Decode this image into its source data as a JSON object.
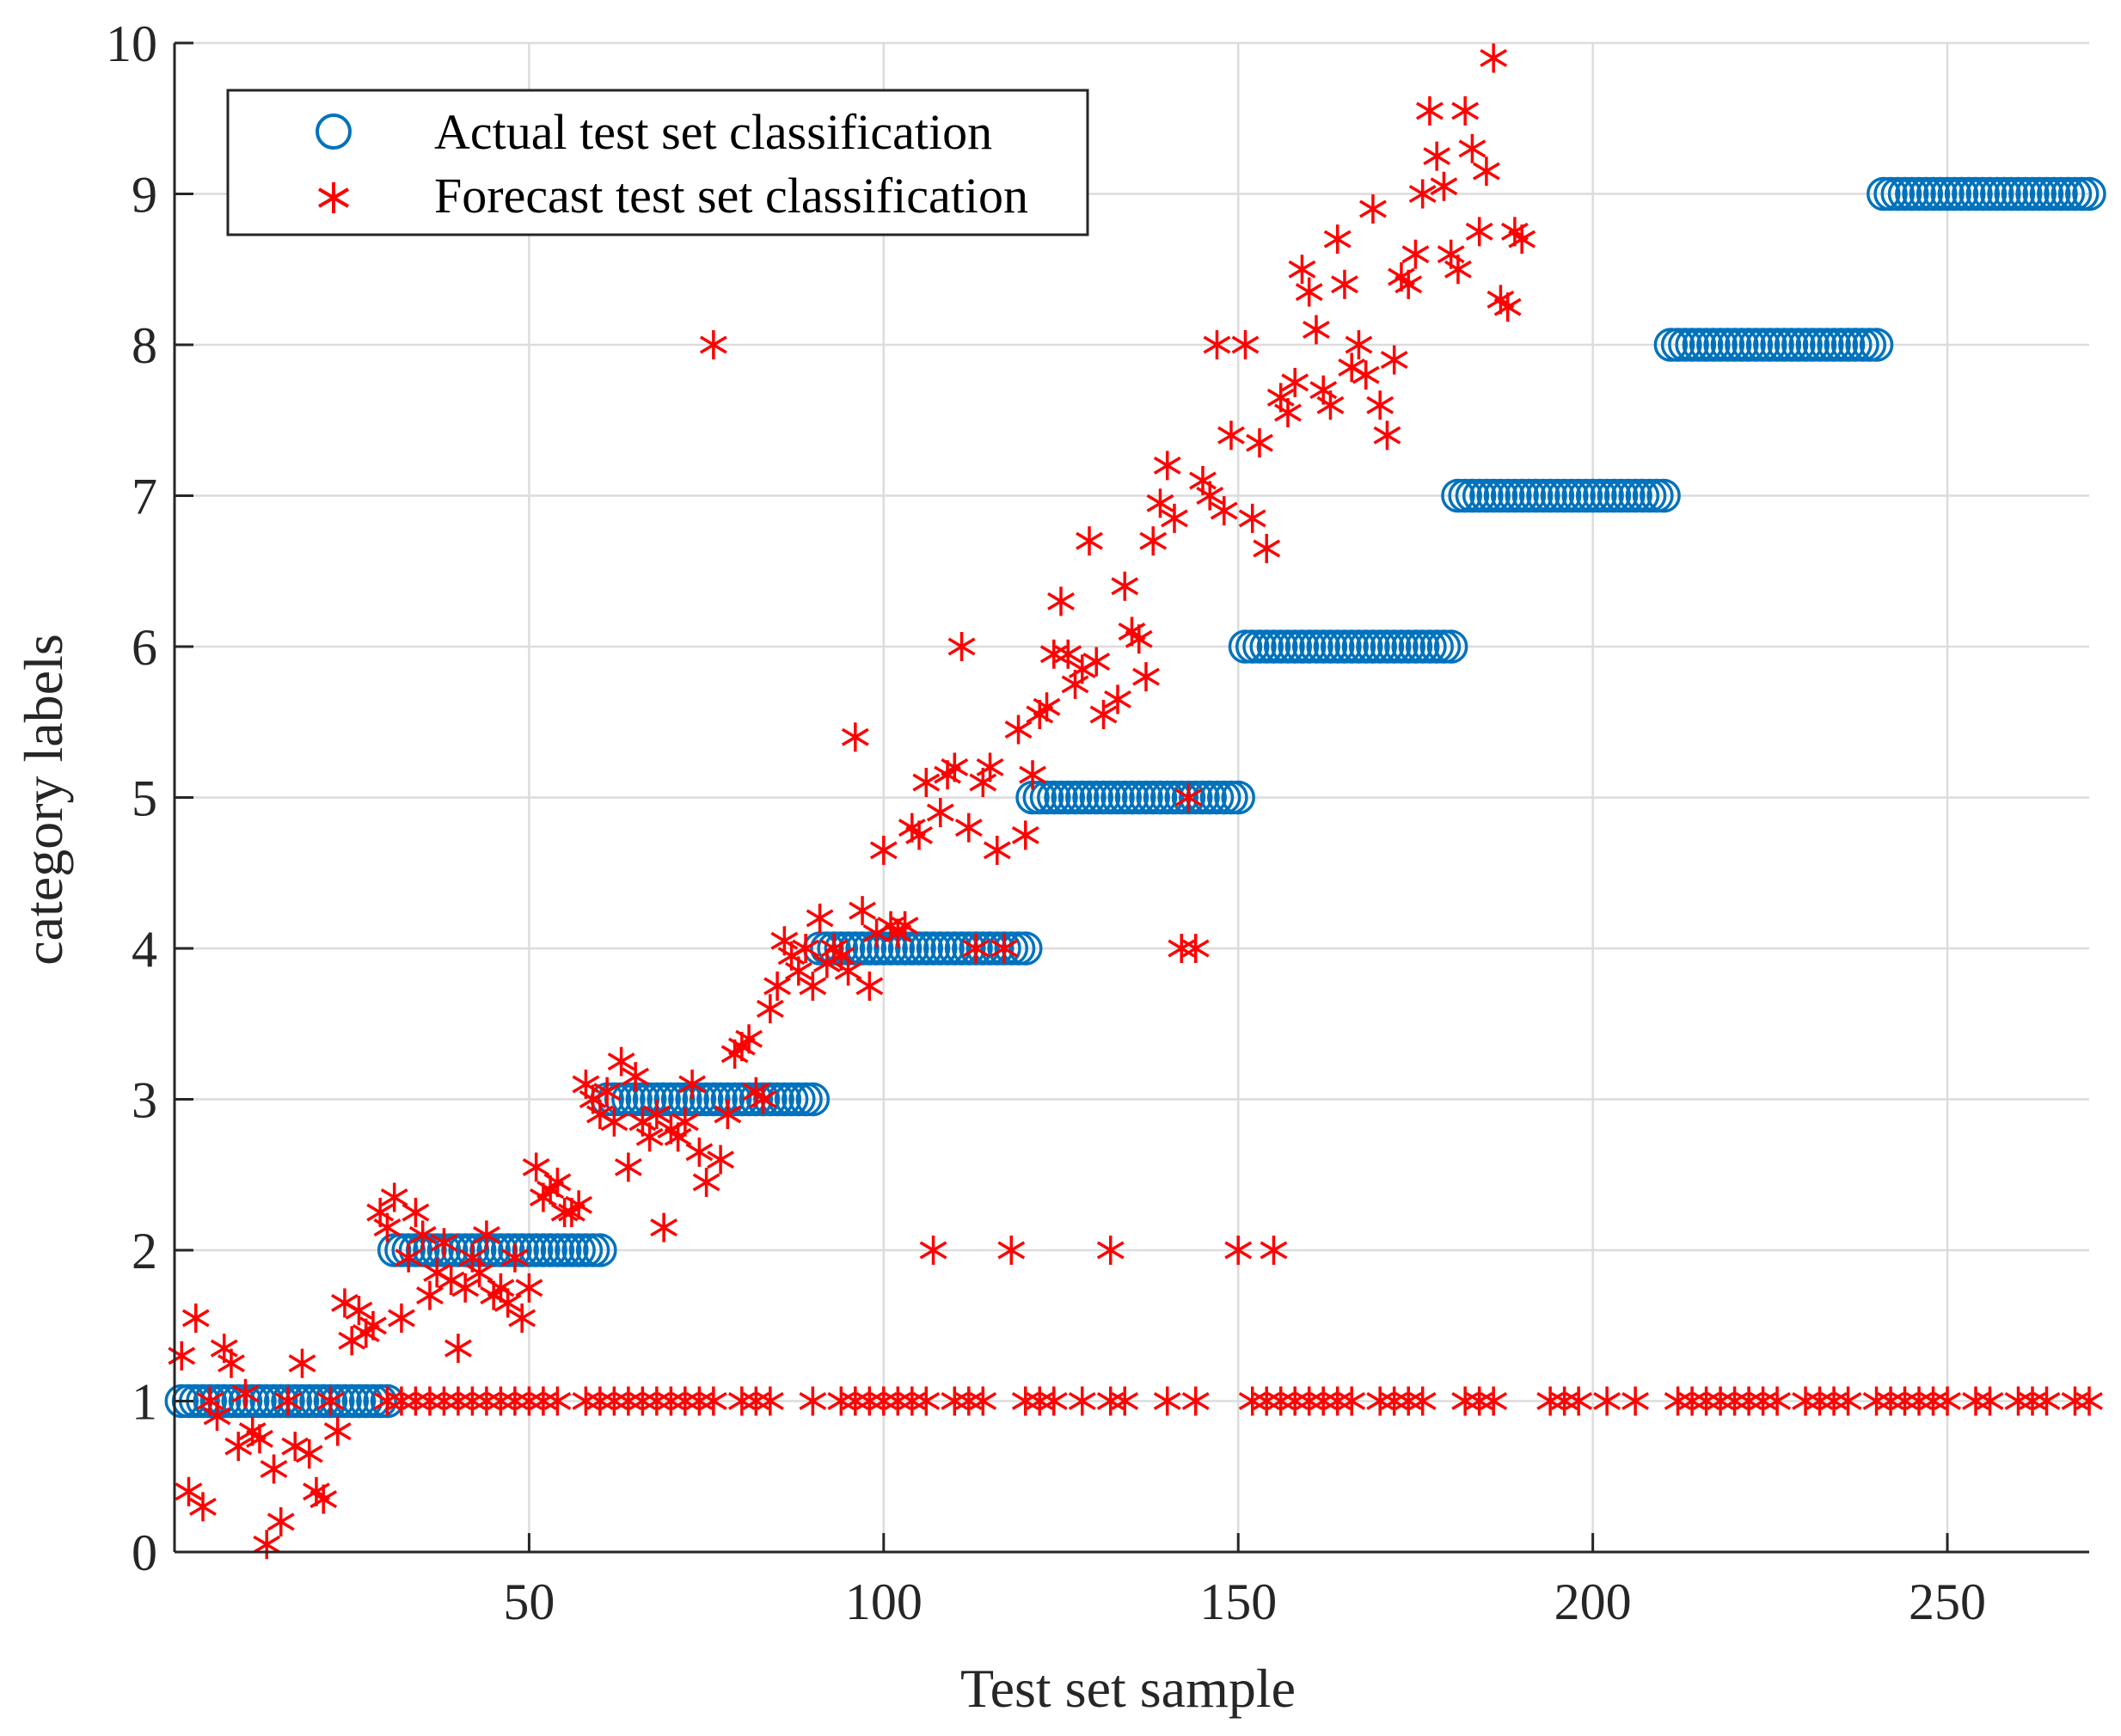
{
  "chart_data": {
    "type": "scatter",
    "title": "",
    "xlabel": "Test set sample",
    "ylabel": "category labels",
    "xlim": [
      0,
      270
    ],
    "ylim": [
      0,
      10
    ],
    "xticks": [
      50,
      100,
      150,
      200,
      250
    ],
    "yticks": [
      0,
      1,
      2,
      3,
      4,
      5,
      6,
      7,
      8,
      9,
      10
    ],
    "grid": true,
    "legend_position": "top-left",
    "colors": {
      "actual": "#0072BD",
      "forecast": "#FF0000",
      "grid": "#DCDCDC",
      "axis": "#262626"
    },
    "series": [
      {
        "name": "Actual test set classification",
        "marker": "circle",
        "segments": [
          {
            "label": 1,
            "from": 1,
            "to": 30
          },
          {
            "label": 2,
            "from": 31,
            "to": 60
          },
          {
            "label": 3,
            "from": 61,
            "to": 90
          },
          {
            "label": 4,
            "from": 91,
            "to": 120
          },
          {
            "label": 5,
            "from": 121,
            "to": 150
          },
          {
            "label": 6,
            "from": 151,
            "to": 180
          },
          {
            "label": 7,
            "from": 181,
            "to": 210
          },
          {
            "label": 8,
            "from": 211,
            "to": 240
          },
          {
            "label": 9,
            "from": 241,
            "to": 270
          }
        ]
      },
      {
        "name": "Forecast test set classification",
        "marker": "asterisk",
        "baseline_value": 1,
        "baseline_x": [
          30,
          32,
          34,
          36,
          38,
          40,
          42,
          44,
          46,
          48,
          50,
          52,
          54,
          58,
          60,
          62,
          64,
          66,
          68,
          70,
          72,
          74,
          76,
          80,
          82,
          84,
          90,
          94,
          96,
          98,
          100,
          102,
          104,
          106,
          110,
          112,
          114,
          120,
          122,
          124,
          128,
          132,
          134,
          140,
          144,
          152,
          154,
          156,
          158,
          160,
          162,
          164,
          166,
          170,
          172,
          174,
          176,
          182,
          184,
          186,
          194,
          196,
          198,
          202,
          206,
          212,
          214,
          216,
          218,
          220,
          222,
          224,
          226,
          230,
          232,
          234,
          236,
          240,
          242,
          244,
          246,
          248,
          250,
          254,
          256,
          260,
          262,
          264,
          268,
          270
        ],
        "points": [
          [
            1,
            1.3
          ],
          [
            2,
            0.4
          ],
          [
            3,
            1.55
          ],
          [
            4,
            0.3
          ],
          [
            5,
            1.0
          ],
          [
            6,
            0.9
          ],
          [
            7,
            1.35
          ],
          [
            8,
            1.25
          ],
          [
            9,
            0.7
          ],
          [
            10,
            1.05
          ],
          [
            11,
            0.8
          ],
          [
            12,
            0.75
          ],
          [
            13,
            0.05
          ],
          [
            14,
            0.55
          ],
          [
            15,
            0.2
          ],
          [
            16,
            1.0
          ],
          [
            17,
            0.7
          ],
          [
            18,
            1.25
          ],
          [
            19,
            0.65
          ],
          [
            20,
            0.4
          ],
          [
            21,
            0.35
          ],
          [
            22,
            1.0
          ],
          [
            23,
            0.8
          ],
          [
            24,
            1.65
          ],
          [
            25,
            1.4
          ],
          [
            26,
            1.6
          ],
          [
            27,
            1.45
          ],
          [
            28,
            1.5
          ],
          [
            29,
            2.25
          ],
          [
            30,
            2.15
          ],
          [
            31,
            2.35
          ],
          [
            32,
            1.55
          ],
          [
            33,
            1.95
          ],
          [
            34,
            2.25
          ],
          [
            35,
            2.1
          ],
          [
            36,
            1.7
          ],
          [
            37,
            1.85
          ],
          [
            38,
            2.05
          ],
          [
            39,
            1.8
          ],
          [
            40,
            1.35
          ],
          [
            41,
            1.75
          ],
          [
            42,
            1.95
          ],
          [
            43,
            1.85
          ],
          [
            44,
            2.1
          ],
          [
            45,
            1.7
          ],
          [
            46,
            1.75
          ],
          [
            47,
            1.65
          ],
          [
            48,
            1.95
          ],
          [
            49,
            1.55
          ],
          [
            50,
            1.75
          ],
          [
            51,
            2.55
          ],
          [
            52,
            2.35
          ],
          [
            53,
            2.4
          ],
          [
            54,
            2.45
          ],
          [
            55,
            2.25
          ],
          [
            56,
            2.25
          ],
          [
            57,
            2.3
          ],
          [
            58,
            3.1
          ],
          [
            59,
            3.0
          ],
          [
            60,
            2.9
          ],
          [
            61,
            3.05
          ],
          [
            62,
            2.85
          ],
          [
            63,
            3.25
          ],
          [
            64,
            2.55
          ],
          [
            65,
            3.15
          ],
          [
            66,
            2.85
          ],
          [
            67,
            2.75
          ],
          [
            68,
            2.9
          ],
          [
            69,
            2.15
          ],
          [
            70,
            2.8
          ],
          [
            71,
            2.75
          ],
          [
            72,
            2.85
          ],
          [
            73,
            3.1
          ],
          [
            74,
            2.65
          ],
          [
            75,
            2.45
          ],
          [
            76,
            8.0
          ],
          [
            77,
            2.6
          ],
          [
            78,
            2.9
          ],
          [
            79,
            3.3
          ],
          [
            80,
            3.35
          ],
          [
            81,
            3.4
          ],
          [
            82,
            3.05
          ],
          [
            83,
            3.0
          ],
          [
            84,
            3.6
          ],
          [
            85,
            3.75
          ],
          [
            86,
            4.05
          ],
          [
            87,
            3.95
          ],
          [
            88,
            3.85
          ],
          [
            89,
            4.0
          ],
          [
            90,
            3.75
          ],
          [
            91,
            4.2
          ],
          [
            92,
            3.9
          ],
          [
            93,
            4.0
          ],
          [
            94,
            3.95
          ],
          [
            95,
            3.85
          ],
          [
            96,
            5.4
          ],
          [
            97,
            4.25
          ],
          [
            98,
            3.75
          ],
          [
            99,
            4.1
          ],
          [
            100,
            4.65
          ],
          [
            101,
            4.15
          ],
          [
            102,
            4.1
          ],
          [
            103,
            4.15
          ],
          [
            104,
            4.8
          ],
          [
            105,
            4.75
          ],
          [
            106,
            5.1
          ],
          [
            107,
            2.0
          ],
          [
            108,
            4.9
          ],
          [
            109,
            5.15
          ],
          [
            110,
            5.2
          ],
          [
            111,
            6.0
          ],
          [
            112,
            4.8
          ],
          [
            113,
            4.0
          ],
          [
            114,
            5.1
          ],
          [
            115,
            5.2
          ],
          [
            116,
            4.65
          ],
          [
            117,
            4.0
          ],
          [
            118,
            2.0
          ],
          [
            119,
            5.45
          ],
          [
            120,
            4.75
          ],
          [
            121,
            5.15
          ],
          [
            122,
            5.55
          ],
          [
            123,
            5.6
          ],
          [
            124,
            5.95
          ],
          [
            125,
            6.3
          ],
          [
            126,
            5.95
          ],
          [
            127,
            5.75
          ],
          [
            128,
            5.85
          ],
          [
            129,
            6.7
          ],
          [
            130,
            5.9
          ],
          [
            131,
            5.55
          ],
          [
            132,
            2.0
          ],
          [
            133,
            5.65
          ],
          [
            134,
            6.4
          ],
          [
            135,
            6.1
          ],
          [
            136,
            6.05
          ],
          [
            137,
            5.8
          ],
          [
            138,
            6.7
          ],
          [
            139,
            6.95
          ],
          [
            140,
            7.2
          ],
          [
            141,
            6.85
          ],
          [
            142,
            4.0
          ],
          [
            143,
            5.0
          ],
          [
            144,
            4.0
          ],
          [
            145,
            7.1
          ],
          [
            146,
            7.0
          ],
          [
            147,
            8.0
          ],
          [
            148,
            6.9
          ],
          [
            149,
            7.4
          ],
          [
            150,
            2.0
          ],
          [
            151,
            8.0
          ],
          [
            152,
            6.85
          ],
          [
            153,
            7.35
          ],
          [
            154,
            6.65
          ],
          [
            155,
            2.0
          ],
          [
            156,
            7.65
          ],
          [
            157,
            7.55
          ],
          [
            158,
            7.75
          ],
          [
            159,
            8.5
          ],
          [
            160,
            8.35
          ],
          [
            161,
            8.1
          ],
          [
            162,
            7.7
          ],
          [
            163,
            7.6
          ],
          [
            164,
            8.7
          ],
          [
            165,
            8.4
          ],
          [
            166,
            7.85
          ],
          [
            167,
            8.0
          ],
          [
            168,
            7.8
          ],
          [
            169,
            8.9
          ],
          [
            170,
            7.6
          ],
          [
            171,
            7.4
          ],
          [
            172,
            7.9
          ],
          [
            173,
            8.45
          ],
          [
            174,
            8.4
          ],
          [
            175,
            8.6
          ],
          [
            176,
            9.0
          ],
          [
            177,
            9.55
          ],
          [
            178,
            9.25
          ],
          [
            179,
            9.05
          ],
          [
            180,
            8.6
          ],
          [
            181,
            8.5
          ],
          [
            182,
            9.55
          ],
          [
            183,
            9.3
          ],
          [
            184,
            8.75
          ],
          [
            185,
            9.15
          ],
          [
            186,
            9.9
          ],
          [
            187,
            8.3
          ],
          [
            188,
            8.25
          ],
          [
            189,
            8.75
          ],
          [
            190,
            8.7
          ]
        ]
      }
    ]
  }
}
